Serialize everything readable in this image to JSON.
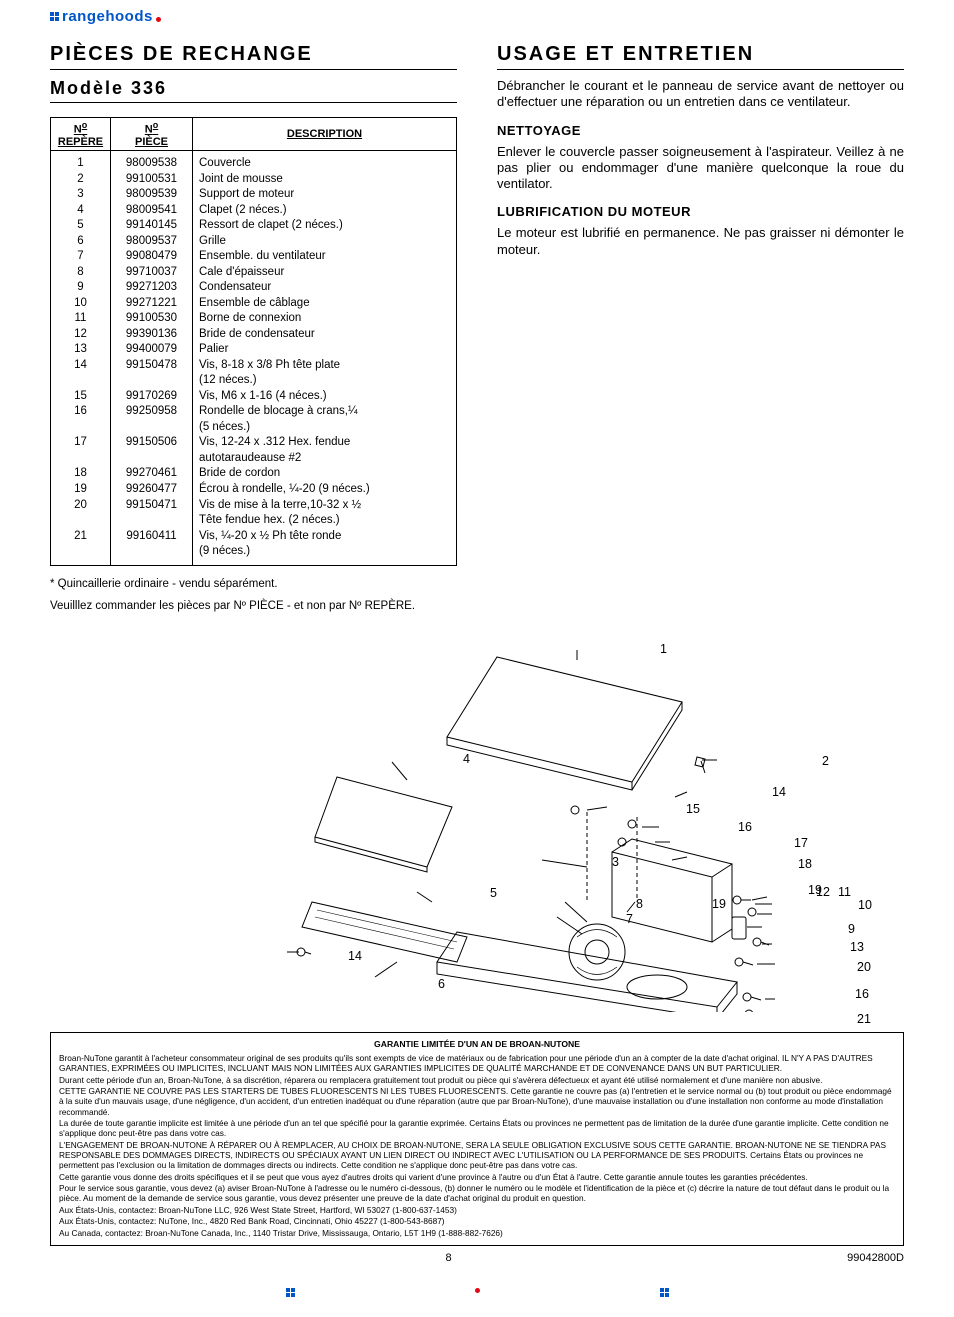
{
  "logo": {
    "text": "rangehoods"
  },
  "left": {
    "title": "PIÈCES DE RECHANGE",
    "model": "Modèle 336",
    "headers": {
      "ref": "Nº REPÈRE",
      "part": "Nº PIÈCE",
      "desc": "DESCRIPTION"
    },
    "footnote": "* Quincaillerie ordinaire - vendu séparément.",
    "order": "Veuilllez commander les pièces par Nº PIÈCE - et non par Nº REPÈRE."
  },
  "parts": [
    {
      "ref": "1",
      "part": "98009538",
      "desc": "Couvercle"
    },
    {
      "ref": "2",
      "part": "99100531",
      "desc": "Joint de mousse"
    },
    {
      "ref": "3",
      "part": "98009539",
      "desc": "Support de moteur"
    },
    {
      "ref": "4",
      "part": "98009541",
      "desc": "Clapet (2 néces.)"
    },
    {
      "ref": "5",
      "part": "99140145",
      "desc": "Ressort de clapet (2 néces.)"
    },
    {
      "ref": "6",
      "part": "98009537",
      "desc": "Grille"
    },
    {
      "ref": "7",
      "part": "99080479",
      "desc": "Ensemble. du ventilateur"
    },
    {
      "ref": "8",
      "part": "99710037",
      "desc": "Cale d'épaisseur"
    },
    {
      "ref": "9",
      "part": "99271203",
      "desc": "Condensateur"
    },
    {
      "ref": "10",
      "part": "99271221",
      "desc": "Ensemble de câblage"
    },
    {
      "ref": "11",
      "part": "99100530",
      "desc": "Borne de connexion"
    },
    {
      "ref": "12",
      "part": "99390136",
      "desc": "Bride de condensateur"
    },
    {
      "ref": "13",
      "part": "99400079",
      "desc": "Palier"
    },
    {
      "ref": "14",
      "part": "99150478",
      "desc": "Vis, 8-18 x 3/8 Ph tête plate",
      "cont": "(12 néces.)"
    },
    {
      "ref": "15",
      "part": "99170269",
      "desc": "Vis, M6 x 1-16 (4 néces.)"
    },
    {
      "ref": "16",
      "part": "99250958",
      "desc": "Rondelle de blocage à crans,¼",
      "cont": "(5 néces.)"
    },
    {
      "ref": "17",
      "part": "99150506",
      "desc": "Vis, 12-24 x .312 Hex. fendue",
      "cont": "autotaraudeause #2"
    },
    {
      "ref": "18",
      "part": "99270461",
      "desc": "Bride de cordon"
    },
    {
      "ref": "19",
      "part": "99260477",
      "desc": "Écrou à rondelle, ¼-20 (9 néces.)"
    },
    {
      "ref": "20",
      "part": "99150471",
      "desc": "Vis de mise à la terre,10-32 x ½",
      "cont": "Tête fendue hex. (2 néces.)"
    },
    {
      "ref": "21",
      "part": "99160411",
      "desc": "Vis, ¼-20 x ½ Ph tête ronde",
      "cont": "(9 néces.)"
    }
  ],
  "right": {
    "title": "USAGE ET ENTRETIEN",
    "intro": "Débrancher le courant et le panneau de service avant de nettoyer ou d'effectuer une réparation ou un entretien dans ce ventilateur.",
    "clean_h": "NETTOYAGE",
    "clean": "Enlever le couvercle passer soigneusement à l'aspirateur. Veillez à ne pas plier ou endommager d'une manière quelconque la roue du ventilator.",
    "lube_h": "LUBRIFICATION DU MOTEUR",
    "lube": "Le moteur est lubrifié en permanence. Ne pas graisser ni démonter le moteur."
  },
  "callouts": {
    "c1": "1",
    "c2": "2",
    "c3": "3",
    "c4": "4",
    "c5": "5",
    "c6": "6",
    "c7": "7",
    "c8": "8",
    "c9": "9",
    "c10": "10",
    "c11": "11",
    "c12": "12",
    "c13": "13",
    "c14a": "14",
    "c14b": "14",
    "c15": "15",
    "c16a": "16",
    "c16b": "16",
    "c17": "17",
    "c18": "18",
    "c19a": "19",
    "c19b": "19",
    "c20": "20",
    "c21": "21"
  },
  "warranty": {
    "title": "GARANTIE LIMITÉE D'UN AN DE BROAN-NUTONE",
    "p1": "Broan-NuTone garantit à l'acheteur consommateur original de ses produits qu'ils sont exempts de vice de matériaux ou de fabrication pour une période d'un an à compter de la date d'achat original. IL N'Y A PAS D'AUTRES GARANTIES, EXPRIMÉES OU IMPLICITES, INCLUANT MAIS NON LIMITÉES AUX GARANTIES IMPLICITES DE QUALITÉ MARCHANDE ET DE CONVENANCE DANS UN BUT PARTICULIER.",
    "p2": "Durant cette période d'un an, Broan-NuTone, à sa discrétion, réparera ou remplacera gratuitement tout produit ou pièce qui s'avèrera défectueux et ayant été utilisé normalement et d'une manière non abusive.",
    "p3": "CETTE GARANTIE NE COUVRE PAS LES STARTERS DE TUBES FLUORESCENTS NI LES TUBES FLUORESCENTS. Cette garantie ne couvre pas (a) l'entretien et le service normal ou (b) tout produit ou pièce endommagé à la suite d'un mauvais usage, d'une négligence, d'un accident, d'un entretien inadéquat ou d'une réparation (autre que par Broan-NuTone), d'une mauvaise installation ou d'une installation non conforme au mode d'installation recommandé.",
    "p4": "La durée de toute garantie implicite est limitée à une période d'un an tel que spécifié pour la garantie exprimée. Certains États ou provinces ne permettent pas de limitation de la durée d'une garantie implicite. Cette condition ne s'applique donc peut-être pas dans votre cas.",
    "p5": "L'ENGAGEMENT DE BROAN-NUTONE À RÉPARER OU À REMPLACER, AU CHOIX DE BROAN-NUTONE, SERA LA SEULE OBLIGATION EXCLUSIVE SOUS CETTE GARANTIE. BROAN-NUTONE NE SE TIENDRA PAS RESPONSABLE DES DOMMAGES DIRECTS, INDIRECTS OU SPÉCIAUX AYANT UN LIEN DIRECT OU INDIRECT AVEC L'UTILISATION OU LA PERFORMANCE DE SES PRODUITS. Certains États ou provinces ne permettent pas l'exclusion ou la limitation de dommages directs ou indirects. Cette condition ne s'applique donc peut-être pas dans votre cas.",
    "p6": "Cette garantie vous donne des droits spécifiques et il se peut que vous ayez d'autres droits qui varient d'une province à l'autre ou d'un État à l'autre. Cette garantie annule toutes les garanties précédentes.",
    "p7": "Pour le service sous garantie, vous devez (a) aviser Broan-NuTone à l'adresse ou le numéro ci-dessous, (b) donner le numéro ou le modèle et l'identification de la pièce et (c) décrire la nature de tout défaut dans le produit ou la pièce. Au moment de la demande de service sous garantie, vous devez présenter une preuve de la date d'achat original du produit en question.",
    "p8": "Aux États-Unis, contactez: Broan-NuTone LLC, 926 West State Street, Hartford, WI 53027 (1-800-637-1453)",
    "p9": "Aux États-Unis, contactez: NuTone, Inc., 4820 Red Bank Road, Cincinnati, Ohio 45227 (1-800-543-8687)",
    "p10": "Au Canada, contactez: Broan-NuTone Canada, Inc., 1140 Tristar Drive, Mississauga, Ontario, L5T 1H9 (1-888-882-7626)"
  },
  "footer": {
    "page": "8",
    "doc": "99042800D"
  }
}
